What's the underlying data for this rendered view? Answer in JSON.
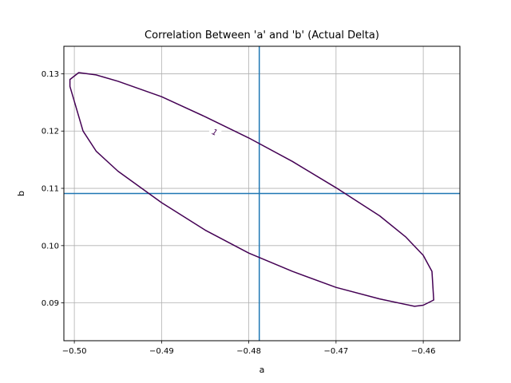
{
  "chart_data": {
    "type": "line",
    "title": "Correlation Between 'a' and 'b' (Actual Delta)",
    "xlabel": "a",
    "ylabel": "b",
    "xlim": [
      -0.5012,
      -0.4558
    ],
    "ylim": [
      0.0834,
      0.1348
    ],
    "xticks": [
      -0.5,
      -0.49,
      -0.48,
      -0.47,
      -0.46
    ],
    "xtick_labels": [
      "−0.50",
      "−0.49",
      "−0.48",
      "−0.47",
      "−0.46"
    ],
    "yticks": [
      0.09,
      0.1,
      0.11,
      0.12,
      0.13
    ],
    "ytick_labels": [
      "0.09",
      "0.10",
      "0.11",
      "0.12",
      "0.13"
    ],
    "grid": true,
    "reference_lines": {
      "vertical_x": -0.4788,
      "horizontal_y": 0.1091,
      "color": "#1f77b4"
    },
    "contour": {
      "level_label": "1",
      "color": "#440154",
      "center": [
        -0.4794,
        0.1098
      ],
      "points": [
        [
          -0.4995,
          0.1302
        ],
        [
          -0.4975,
          0.1298
        ],
        [
          -0.495,
          0.1287
        ],
        [
          -0.49,
          0.126
        ],
        [
          -0.485,
          0.1225
        ],
        [
          -0.48,
          0.1188
        ],
        [
          -0.475,
          0.1147
        ],
        [
          -0.47,
          0.1101
        ],
        [
          -0.465,
          0.1052
        ],
        [
          -0.462,
          0.1015
        ],
        [
          -0.46,
          0.0983
        ],
        [
          -0.459,
          0.0955
        ],
        [
          -0.4588,
          0.0905
        ],
        [
          -0.46,
          0.0896
        ],
        [
          -0.461,
          0.0894
        ],
        [
          -0.465,
          0.0907
        ],
        [
          -0.47,
          0.0927
        ],
        [
          -0.475,
          0.0955
        ],
        [
          -0.48,
          0.0987
        ],
        [
          -0.485,
          0.1027
        ],
        [
          -0.49,
          0.1075
        ],
        [
          -0.495,
          0.113
        ],
        [
          -0.4975,
          0.1165
        ],
        [
          -0.499,
          0.12
        ],
        [
          -0.5005,
          0.1278
        ],
        [
          -0.5005,
          0.129
        ],
        [
          -0.4995,
          0.1302
        ]
      ],
      "label_position": [
        -0.4839,
        0.1198
      ]
    },
    "colors": {
      "grid": "#b0b0b0",
      "axes": "#000000"
    }
  }
}
